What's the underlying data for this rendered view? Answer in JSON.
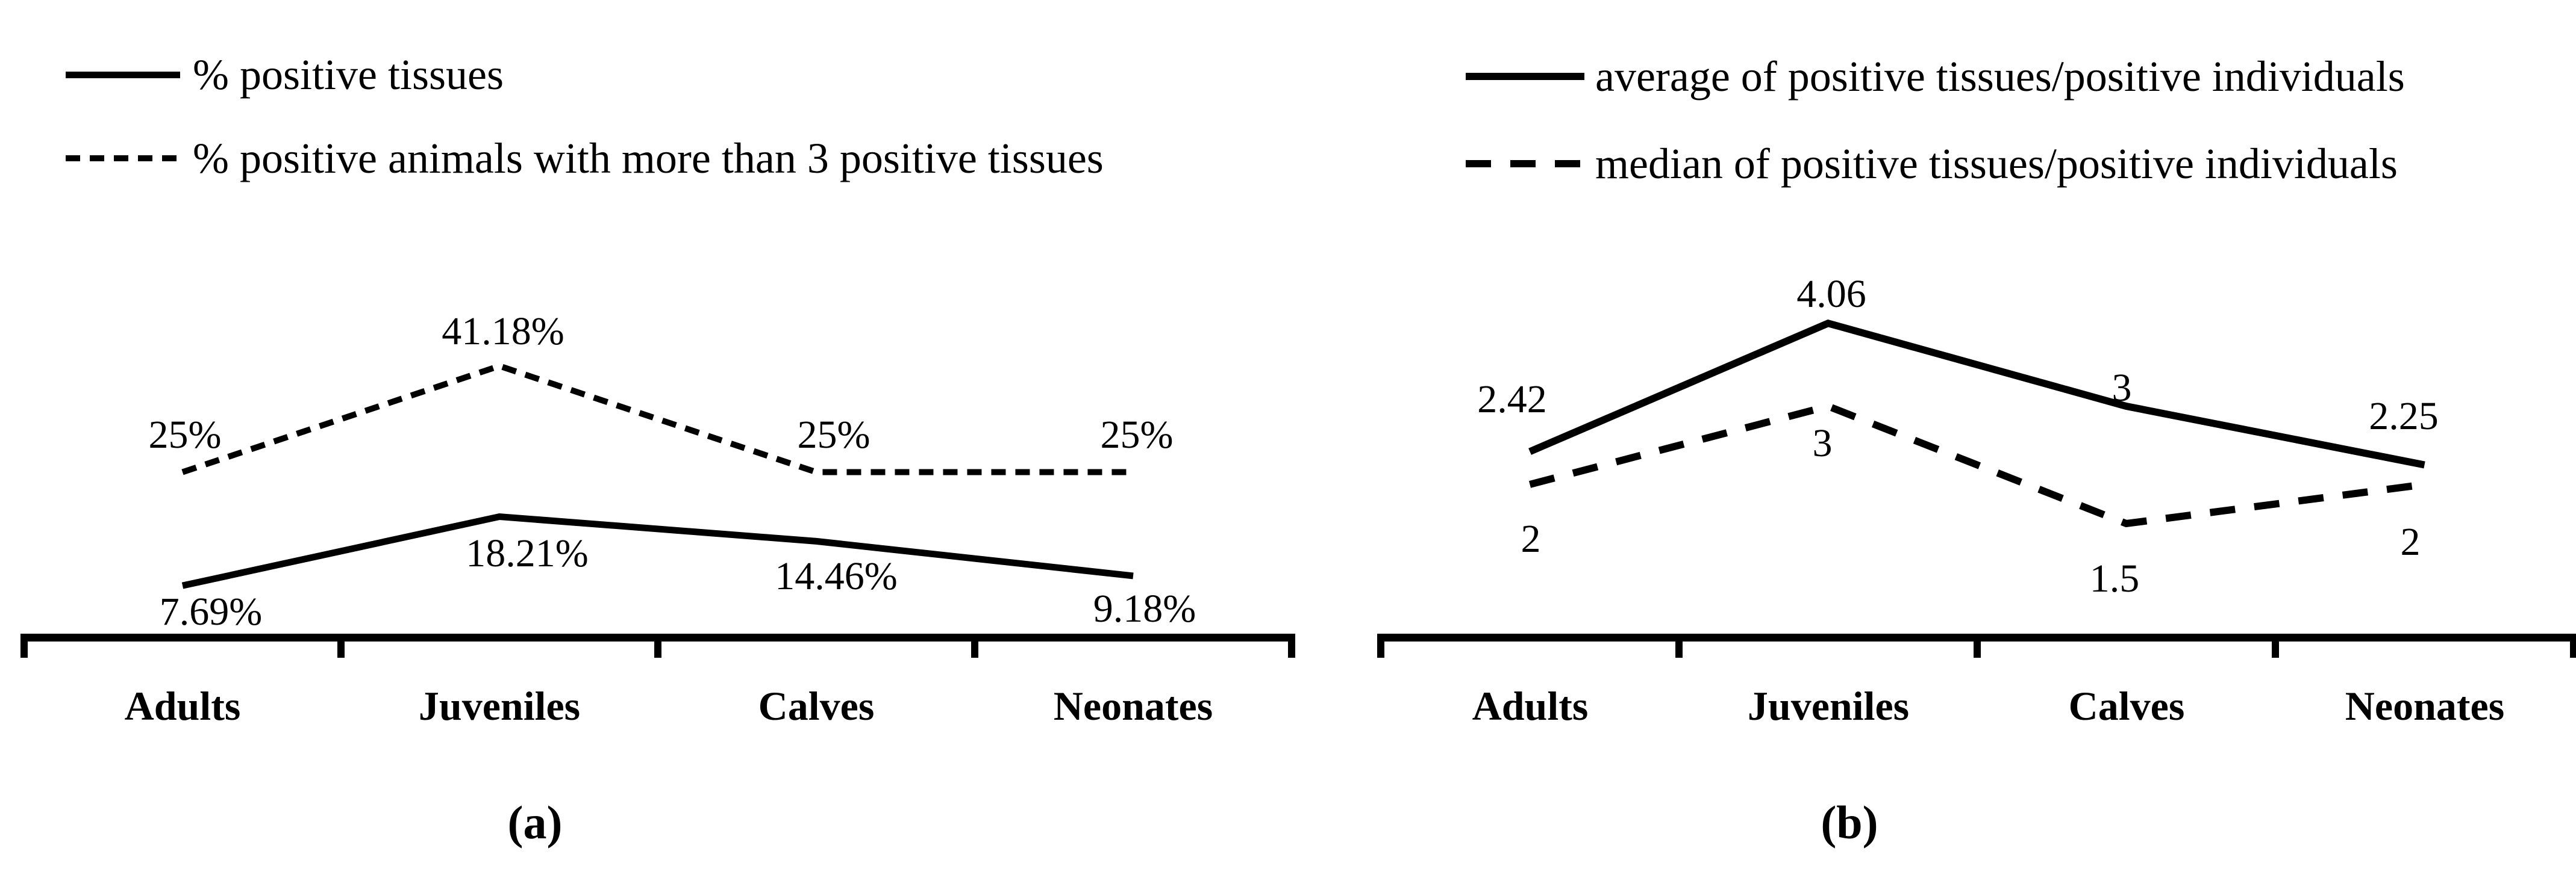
{
  "figure": {
    "background": "#ffffff",
    "ink_color": "#000000"
  },
  "chart_data": [
    {
      "id": "a",
      "type": "line",
      "caption": "(a)",
      "categories": [
        "Adults",
        "Juveniles",
        "Calves",
        "Neonates"
      ],
      "legend_position": "top-left",
      "grid": false,
      "y_axis_visible": false,
      "ylim": [
        0,
        50
      ],
      "series": [
        {
          "name": "% positive tissues",
          "line_style": "solid",
          "color": "#000000",
          "values": [
            7.69,
            18.21,
            14.46,
            9.18
          ],
          "point_labels": [
            "7.69%",
            "18.21%",
            "14.46%",
            "9.18%"
          ]
        },
        {
          "name": "% positive animals with more than 3 positive tissues",
          "line_style": "dashed",
          "color": "#000000",
          "values": [
            25,
            41.18,
            25,
            25
          ],
          "point_labels": [
            "25%",
            "41.18%",
            "25%",
            "25%"
          ]
        }
      ]
    },
    {
      "id": "b",
      "type": "line",
      "caption": "(b)",
      "categories": [
        "Adults",
        "Juveniles",
        "Calves",
        "Neonates"
      ],
      "legend_position": "top-left",
      "grid": false,
      "y_axis_visible": false,
      "ylim": [
        0,
        4.5
      ],
      "series": [
        {
          "name": "average of positive tissues/positive individuals",
          "line_style": "solid",
          "color": "#000000",
          "values": [
            2.42,
            4.06,
            3,
            2.25
          ],
          "point_labels": [
            "2.42",
            "4.06",
            "3",
            "2.25"
          ]
        },
        {
          "name": "median of positive tissues/positive individuals",
          "line_style": "dashed",
          "color": "#000000",
          "values": [
            2,
            3,
            1.5,
            2
          ],
          "point_labels": [
            "2",
            "3",
            "1.5",
            "2"
          ]
        }
      ]
    }
  ]
}
